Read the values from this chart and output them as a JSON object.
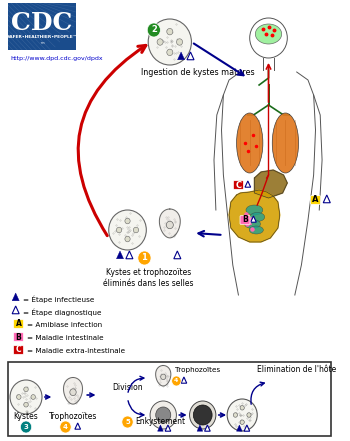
{
  "background_color": "#ffffff",
  "cdc_logo_color": "#1a4c8c",
  "cdc_text": "CDC",
  "cdc_url": "http://www.dpd.cdc.gov/dpdx",
  "cdc_subtitle": "SAFER•HEALTHIER•PEOPLE™",
  "ingestion_label": "Ingestion de kystes matures",
  "step2_label": "2",
  "step2_color": "#228b22",
  "step1_label": "1",
  "step1_color": "#ffa500",
  "box_label_division": "Division",
  "box_label_enkyst": "Enkystement",
  "box_label_elim": "Elimination de l'hôte",
  "box_label_tropho": "Trophozoïtes",
  "box_step3": "3",
  "box_step3_color": "#008080",
  "box_step4": "4",
  "box_step4_color": "#ffa500",
  "box_step5": "5",
  "box_step5_color": "#ffa500",
  "arrow_red": "#cc0000",
  "arrow_blue": "#00008b",
  "organ_lung": "#e07820",
  "organ_intestine_large": "#d4a000",
  "organ_intestine_small": "#20a090",
  "organ_liver": "#6b8c42",
  "organ_brain": "#90ee90",
  "pink_disease": "#ff69b4",
  "badge_A_color": "#ffd700",
  "badge_B_color": "#ff69b4",
  "badge_C_color": "#cc0000",
  "legend_tri_fill": "#00008b",
  "legend_tri_outline": "#00008b"
}
